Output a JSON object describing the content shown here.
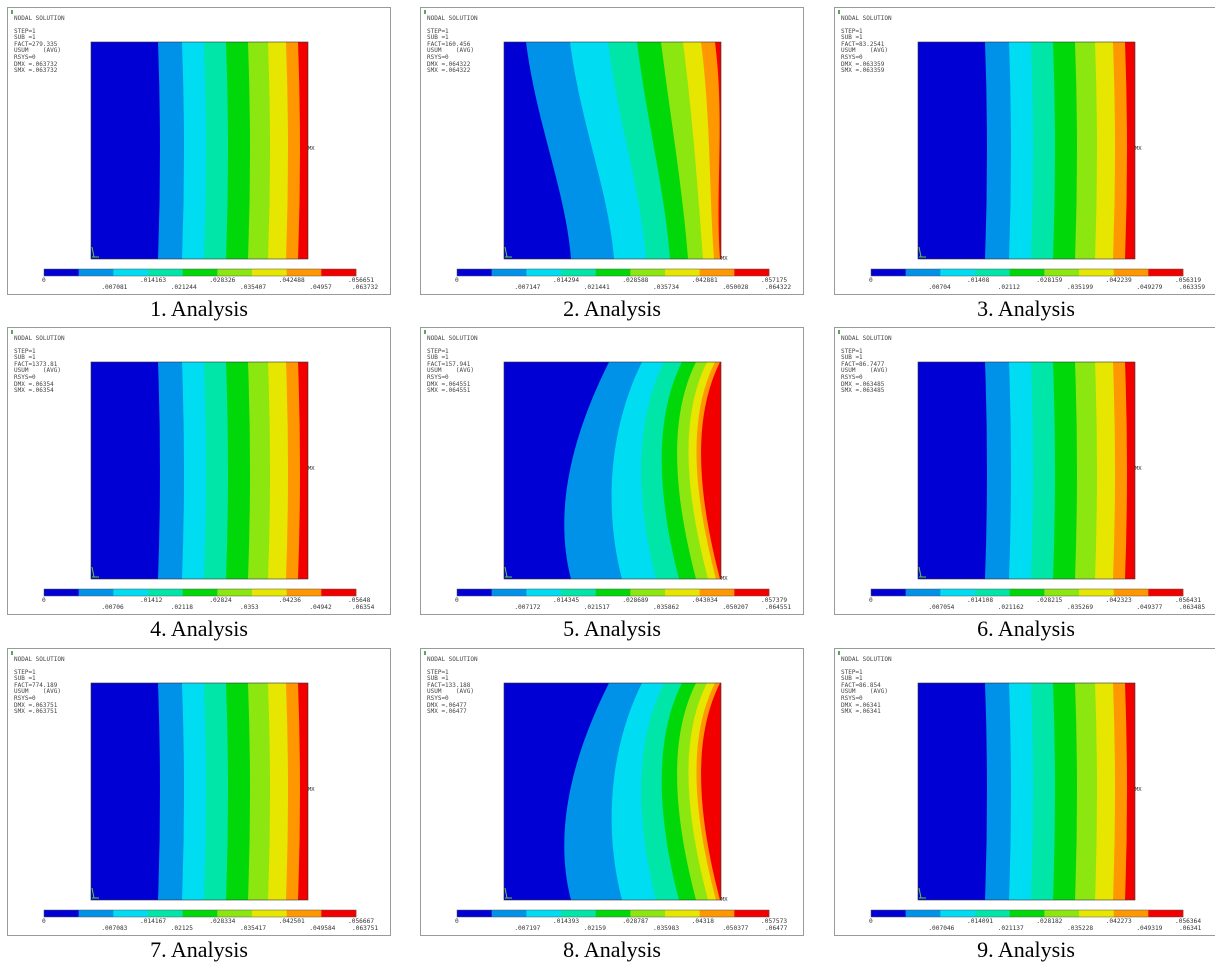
{
  "colors": [
    "#0000d4",
    "#0091e8",
    "#00dcf2",
    "#00e6a8",
    "#00d80a",
    "#8ce610",
    "#e6e600",
    "#ff9800",
    "#f20000"
  ],
  "panels": [
    {
      "caption": "1. Analysis",
      "header": "NODAL SOLUTION",
      "info": [
        "STEP=1",
        "SUB =1",
        "FACT=279.335",
        "USUM    (AVG)",
        "RSYS=0",
        "DMX =.063732",
        "SMX =.063732"
      ],
      "legend_top": [
        "0",
        ".014163",
        ".028326",
        ".042488",
        ".056651"
      ],
      "legend_bottom": [
        ".007081",
        ".021244",
        ".035407",
        ".04957",
        ".063732"
      ],
      "shape": "straight"
    },
    {
      "caption": "2. Analysis",
      "header": "NODAL SOLUTION",
      "info": [
        "STEP=1",
        "SUB =1",
        "FACT=160.456",
        "USUM    (AVG)",
        "RSYS=0",
        "DMX =.064322",
        "SMX =.064322"
      ],
      "legend_top": [
        "0",
        ".014294",
        ".028588",
        ".042881",
        ".057175"
      ],
      "legend_bottom": [
        ".007147",
        ".021441",
        ".035734",
        ".050028",
        ".064322"
      ],
      "shape": "curve1"
    },
    {
      "caption": "3. Analysis",
      "header": "NODAL SOLUTION",
      "info": [
        "STEP=1",
        "SUB =1",
        "FACT=83.2541",
        "USUM    (AVG)",
        "RSYS=0",
        "DMX =.063359",
        "SMX =.063359"
      ],
      "legend_top": [
        "0",
        ".01408",
        ".028159",
        ".042239",
        ".056319"
      ],
      "legend_bottom": [
        ".00704",
        ".02112",
        ".035199",
        ".049279",
        ".063359"
      ],
      "shape": "straight"
    },
    {
      "caption": "4. Analysis",
      "header": "NODAL SOLUTION",
      "info": [
        "STEP=1",
        "SUB =1",
        "FACT=1373.81",
        "USUM    (AVG)",
        "RSYS=0",
        "DMX =.06354",
        "SMX =.06354"
      ],
      "legend_top": [
        "0",
        ".01412",
        ".02824",
        ".04236",
        ".05648"
      ],
      "legend_bottom": [
        ".00706",
        ".02118",
        ".0353",
        ".04942",
        ".06354"
      ],
      "shape": "straight"
    },
    {
      "caption": "5. Analysis",
      "header": "NODAL SOLUTION",
      "info": [
        "STEP=1",
        "SUB =1",
        "FACT=157.941",
        "USUM    (AVG)",
        "RSYS=0",
        "DMX =.064551",
        "SMX =.064551"
      ],
      "legend_top": [
        "0",
        ".014345",
        ".028689",
        ".043034",
        ".057379"
      ],
      "legend_bottom": [
        ".007172",
        ".021517",
        ".035862",
        ".050207",
        ".064551"
      ],
      "shape": "curve2"
    },
    {
      "caption": "6. Analysis",
      "header": "NODAL SOLUTION",
      "info": [
        "STEP=1",
        "SUB =1",
        "FACT=86.7477",
        "USUM    (AVG)",
        "RSYS=0",
        "DMX =.063485",
        "SMX =.063485"
      ],
      "legend_top": [
        "0",
        ".014108",
        ".028215",
        ".042323",
        ".056431"
      ],
      "legend_bottom": [
        ".007054",
        ".021162",
        ".035269",
        ".049377",
        ".063485"
      ],
      "shape": "straight"
    },
    {
      "caption": "7. Analysis",
      "header": "NODAL SOLUTION",
      "info": [
        "STEP=1",
        "SUB =1",
        "FACT=774.189",
        "USUM    (AVG)",
        "RSYS=0",
        "DMX =.063751",
        "SMX =.063751"
      ],
      "legend_top": [
        "0",
        ".014167",
        ".028334",
        ".042501",
        ".056667"
      ],
      "legend_bottom": [
        ".007083",
        ".02125",
        ".035417",
        ".049584",
        ".063751"
      ],
      "shape": "straight"
    },
    {
      "caption": "8. Analysis",
      "header": "NODAL SOLUTION",
      "info": [
        "STEP=1",
        "SUB =1",
        "FACT=133.188",
        "USUM    (AVG)",
        "RSYS=0",
        "DMX =.06477",
        "SMX =.06477"
      ],
      "legend_top": [
        "0",
        ".014393",
        ".028787",
        ".04318",
        ".057573"
      ],
      "legend_bottom": [
        ".007197",
        ".02159",
        ".035983",
        ".050377",
        ".06477"
      ],
      "shape": "curve2"
    },
    {
      "caption": "9. Analysis",
      "header": "NODAL SOLUTION",
      "info": [
        "STEP=1",
        "SUB =1",
        "FACT=86.854",
        "USUM    (AVG)",
        "RSYS=0",
        "DMX =.06341",
        "SMX =.06341"
      ],
      "legend_top": [
        "0",
        ".014091",
        ".028182",
        ".042273",
        ".056364"
      ],
      "legend_bottom": [
        ".007046",
        ".021137",
        ".035228",
        ".049319",
        ".06341"
      ],
      "shape": "straight"
    }
  ]
}
